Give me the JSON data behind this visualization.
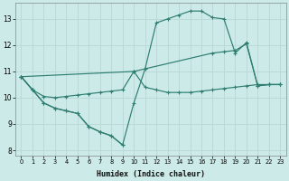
{
  "xlabel": "Humidex (Indice chaleur)",
  "bg_color": "#cceae8",
  "grid_color": "#b8d8d4",
  "line_color": "#2e7d70",
  "xlim": [
    -0.5,
    23.5
  ],
  "ylim": [
    7.8,
    13.6
  ],
  "yticks": [
    8,
    9,
    10,
    11,
    12,
    13
  ],
  "xticks": [
    0,
    1,
    2,
    3,
    4,
    5,
    6,
    7,
    8,
    9,
    10,
    11,
    12,
    13,
    14,
    15,
    16,
    17,
    18,
    19,
    20,
    21,
    22,
    23
  ],
  "line1_x": [
    0,
    1,
    2,
    3,
    4,
    5,
    6,
    7,
    8,
    9
  ],
  "line1_y": [
    10.8,
    10.3,
    9.8,
    9.6,
    9.5,
    9.4,
    8.9,
    8.7,
    8.55,
    8.2
  ],
  "line2_x": [
    0,
    1,
    2,
    3,
    4,
    5,
    6,
    7,
    8,
    9,
    10,
    11,
    12,
    13,
    14,
    15,
    16,
    17,
    18,
    19,
    20,
    21,
    22,
    23
  ],
  "line2_y": [
    10.8,
    10.3,
    9.8,
    9.6,
    9.5,
    9.4,
    8.9,
    8.7,
    8.55,
    8.2,
    9.8,
    11.1,
    12.85,
    13.0,
    13.15,
    13.3,
    13.3,
    13.05,
    13.0,
    11.7,
    12.1,
    10.45,
    10.5,
    10.5
  ],
  "line3_x": [
    0,
    1,
    2,
    3,
    4,
    5,
    6,
    7,
    8,
    9,
    10,
    11,
    12,
    13,
    14,
    15,
    16,
    17,
    18,
    19,
    20,
    21,
    22,
    23
  ],
  "line3_y": [
    10.8,
    10.3,
    10.05,
    10.0,
    10.05,
    10.1,
    10.15,
    10.2,
    10.25,
    10.3,
    11.0,
    10.4,
    10.3,
    10.2,
    10.2,
    10.2,
    10.25,
    10.3,
    10.35,
    10.4,
    10.45,
    10.5,
    10.5,
    10.5
  ],
  "line4_x": [
    0,
    10,
    17,
    18,
    19,
    20,
    21,
    22,
    23
  ],
  "line4_y": [
    10.8,
    11.0,
    11.7,
    11.75,
    11.8,
    12.05,
    10.45,
    10.5,
    10.5
  ]
}
